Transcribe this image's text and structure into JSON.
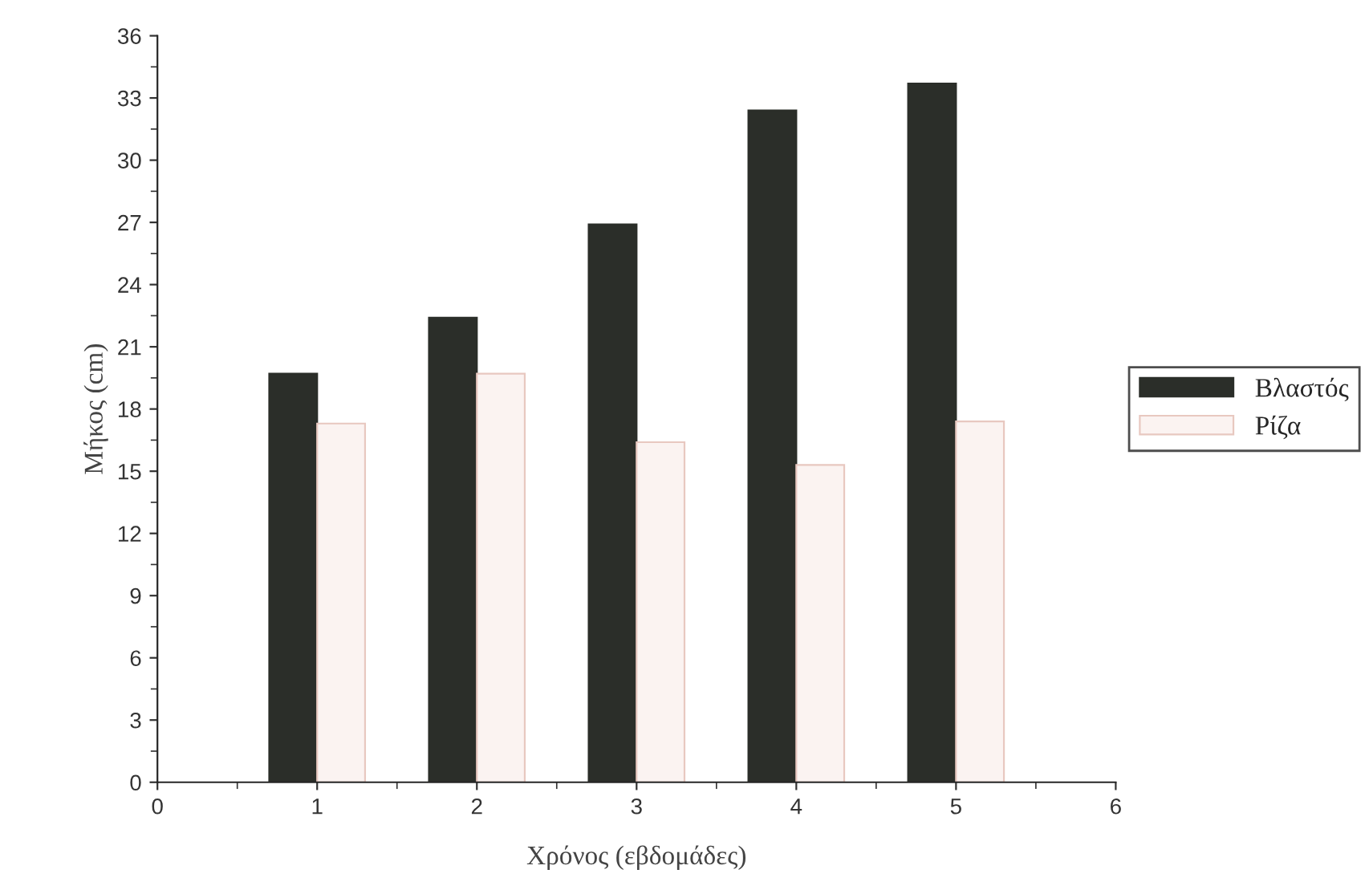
{
  "chart_data": {
    "type": "bar",
    "xlabel": "Χρόνος (εβδομάδες)",
    "ylabel": "Μήκος (cm)",
    "x": [
      1,
      2,
      3,
      4,
      5
    ],
    "series": [
      {
        "name": "Βλαστός",
        "color": "#2b2e29",
        "values": [
          19.7,
          22.4,
          26.9,
          32.4,
          33.7
        ]
      },
      {
        "name": "Ρίζα",
        "color": "#fbf3f1",
        "values": [
          17.3,
          19.7,
          16.4,
          15.3,
          17.4
        ]
      }
    ],
    "xlim": [
      0,
      6
    ],
    "xticks": [
      0,
      1,
      2,
      3,
      4,
      5,
      6
    ],
    "ylim": [
      0,
      36
    ],
    "yticks": [
      0,
      3,
      6,
      9,
      12,
      15,
      18,
      21,
      24,
      27,
      30,
      33,
      36
    ],
    "grid": false,
    "legend": "right"
  }
}
